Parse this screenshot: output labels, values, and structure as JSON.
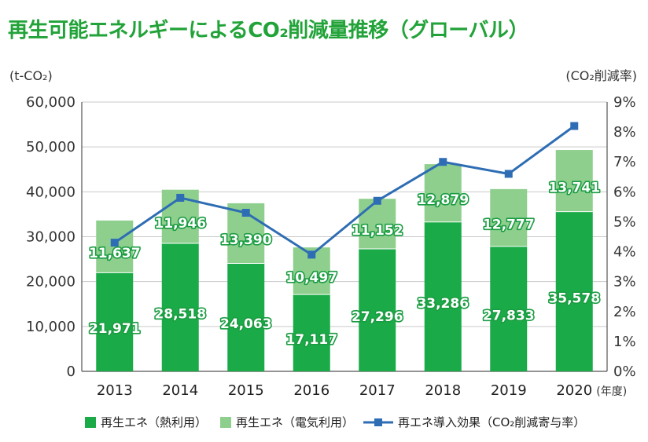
{
  "title": "再生可能エネルギーによるCO₂削減量推移（グローバル）",
  "chart_data": {
    "type": "bar",
    "stacked": true,
    "categories": [
      "2013",
      "2014",
      "2015",
      "2016",
      "2017",
      "2018",
      "2019",
      "2020"
    ],
    "x_unit": "(年度)",
    "y_left": {
      "unit_label": "(t-CO₂)",
      "ylim": [
        0,
        60000
      ],
      "ticks": [
        "0",
        "10,000",
        "20,000",
        "30,000",
        "40,000",
        "50,000",
        "60,000"
      ]
    },
    "y_right": {
      "unit_label": "(CO₂削減率)",
      "ylim": [
        0,
        9
      ],
      "ticks": [
        "0%",
        "1%",
        "2%",
        "3%",
        "4%",
        "5%",
        "6%",
        "7%",
        "8%",
        "9%"
      ]
    },
    "series": [
      {
        "name": "再生エネ（熱利用）",
        "type": "bar",
        "color": "#1aab48",
        "values": [
          21971,
          28518,
          24063,
          17117,
          27296,
          33286,
          27833,
          35578
        ],
        "labels": [
          "21,971",
          "28,518",
          "24,063",
          "17,117",
          "27,296",
          "33,286",
          "27,833",
          "35,578"
        ]
      },
      {
        "name": "再生エネ（電気利用）",
        "type": "bar",
        "color": "#8ecf8e",
        "values": [
          11637,
          11946,
          13390,
          10497,
          11152,
          12879,
          12777,
          13741
        ],
        "labels": [
          "11,637",
          "11,946",
          "13,390",
          "10,497",
          "11,152",
          "12,879",
          "12,777",
          "13,741"
        ]
      },
      {
        "name": "再エネ導入効果（CO₂削減寄与率）",
        "type": "line",
        "axis": "right",
        "color": "#2e6db4",
        "values": [
          4.3,
          5.8,
          5.3,
          3.9,
          5.7,
          7.0,
          6.6,
          8.2
        ]
      }
    ],
    "grid": true,
    "legend": "bottom"
  }
}
